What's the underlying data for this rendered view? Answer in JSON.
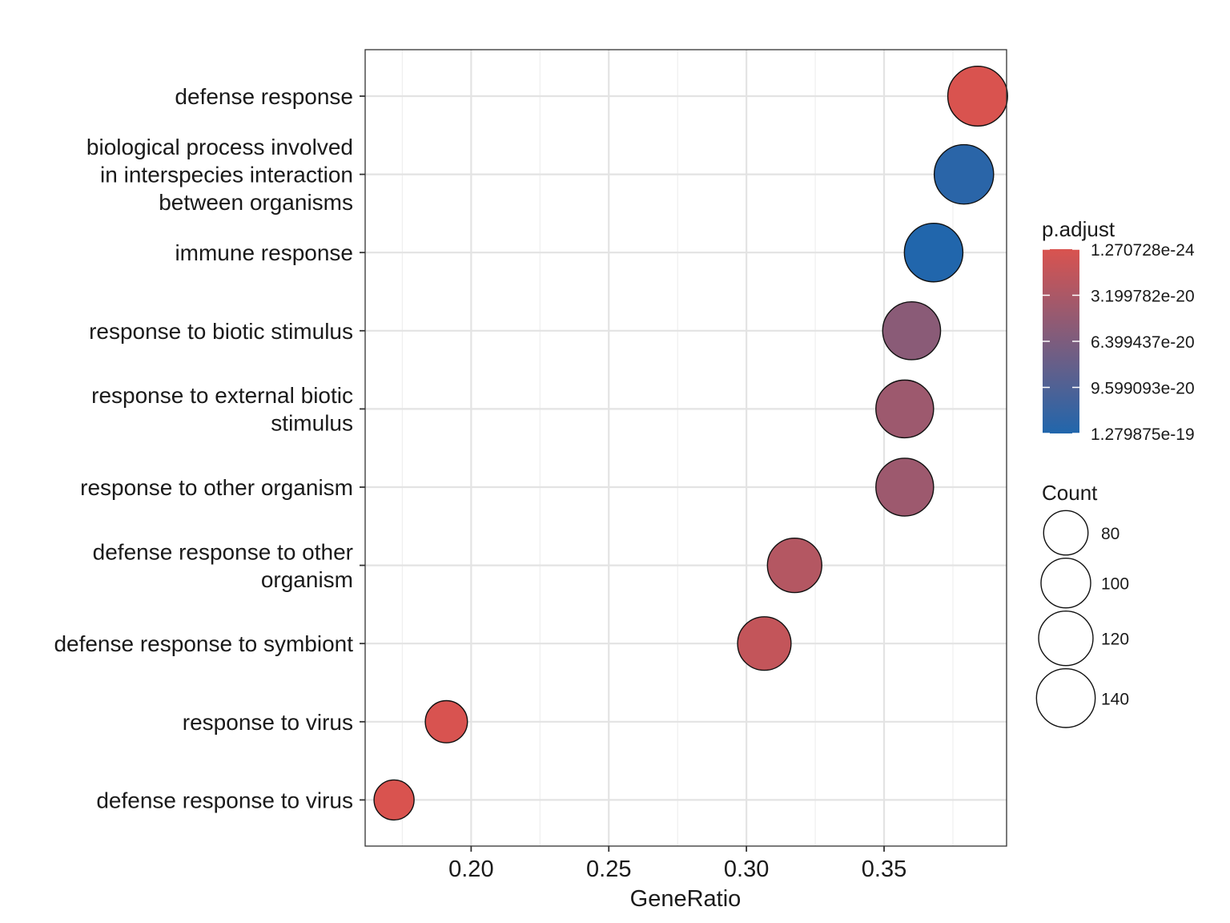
{
  "chart_data": {
    "type": "scatter",
    "title": "",
    "xlabel": "GeneRatio",
    "ylabel": "",
    "xlim": [
      0.1615,
      0.3945
    ],
    "x_ticks": [
      0.2,
      0.25,
      0.3,
      0.35
    ],
    "x_tick_labels": [
      "0.20",
      "0.25",
      "0.30",
      "0.35"
    ],
    "grid": true,
    "categories": [
      {
        "label_lines": [
          "defense response"
        ],
        "gene_ratio": 0.384,
        "count": 145,
        "p_adjust": 1.3e-24
      },
      {
        "label_lines": [
          "biological process involved",
          "in interspecies interaction",
          "between organisms"
        ],
        "gene_ratio": 0.379,
        "count": 143,
        "p_adjust": 1.22e-19
      },
      {
        "label_lines": [
          "immune response"
        ],
        "gene_ratio": 0.368,
        "count": 139,
        "p_adjust": 1.279875e-19
      },
      {
        "label_lines": [
          "response to biotic stimulus"
        ],
        "gene_ratio": 0.36,
        "count": 136,
        "p_adjust": 5.5e-20
      },
      {
        "label_lines": [
          "response to external biotic",
          "stimulus"
        ],
        "gene_ratio": 0.3575,
        "count": 135,
        "p_adjust": 4.2e-20
      },
      {
        "label_lines": [
          "response to other organism"
        ],
        "gene_ratio": 0.3575,
        "count": 135,
        "p_adjust": 4.2e-20
      },
      {
        "label_lines": [
          "defense response to other",
          "organism"
        ],
        "gene_ratio": 0.3175,
        "count": 120,
        "p_adjust": 2.6e-20
      },
      {
        "label_lines": [
          "defense response to symbiont"
        ],
        "gene_ratio": 0.3065,
        "count": 116,
        "p_adjust": 1.5e-20
      },
      {
        "label_lines": [
          "response to virus"
        ],
        "gene_ratio": 0.191,
        "count": 72,
        "p_adjust": 1e-21
      },
      {
        "label_lines": [
          "defense response to virus"
        ],
        "gene_ratio": 0.172,
        "count": 65,
        "p_adjust": 1e-22
      }
    ],
    "color_legend": {
      "title": "p.adjust",
      "min": 1.270728e-24,
      "max": 1.279875e-19,
      "low_color": "#d9534f",
      "high_color": "#2166ac",
      "labels": [
        "1.270728e-24",
        "3.199782e-20",
        "6.399437e-20",
        "9.599093e-20",
        "1.279875e-19"
      ],
      "values": [
        1.270728e-24,
        3.199782e-20,
        6.399437e-20,
        9.599093e-20,
        1.279875e-19
      ]
    },
    "size_legend": {
      "title": "Count",
      "labels": [
        "80",
        "100",
        "120",
        "140"
      ],
      "values": [
        80,
        100,
        120,
        140
      ]
    },
    "legend_position": "right"
  }
}
